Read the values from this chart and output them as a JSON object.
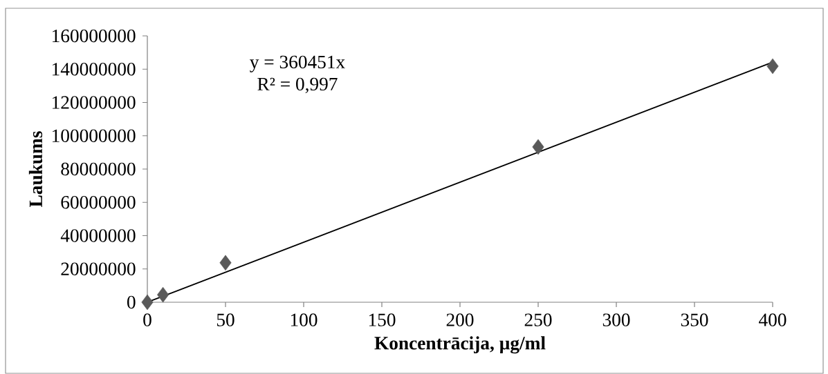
{
  "chart_data": {
    "type": "scatter",
    "xlabel": "Koncentrācija, µg/ml",
    "ylabel": "Laukums",
    "series": [
      {
        "color": "#595959",
        "marker": "diamond",
        "x": [
          0,
          10,
          50,
          250,
          400
        ],
        "values": [
          0,
          4500000,
          23700000,
          93300000,
          141800000
        ]
      },
      {
        "type": "line",
        "color": "#000000",
        "marker": "none",
        "x": [
          0,
          400
        ],
        "values": [
          0,
          144200000
        ]
      }
    ],
    "xlim": [
      0,
      400
    ],
    "xticks": [
      0,
      50,
      100,
      150,
      200,
      250,
      300,
      350,
      400
    ],
    "ylim": [
      0,
      160000000
    ],
    "yticks": [
      0,
      20000000,
      40000000,
      60000000,
      80000000,
      100000000,
      120000000,
      140000000,
      160000000
    ],
    "annotations": [
      "y = 360451x",
      "R² = 0,997"
    ]
  }
}
